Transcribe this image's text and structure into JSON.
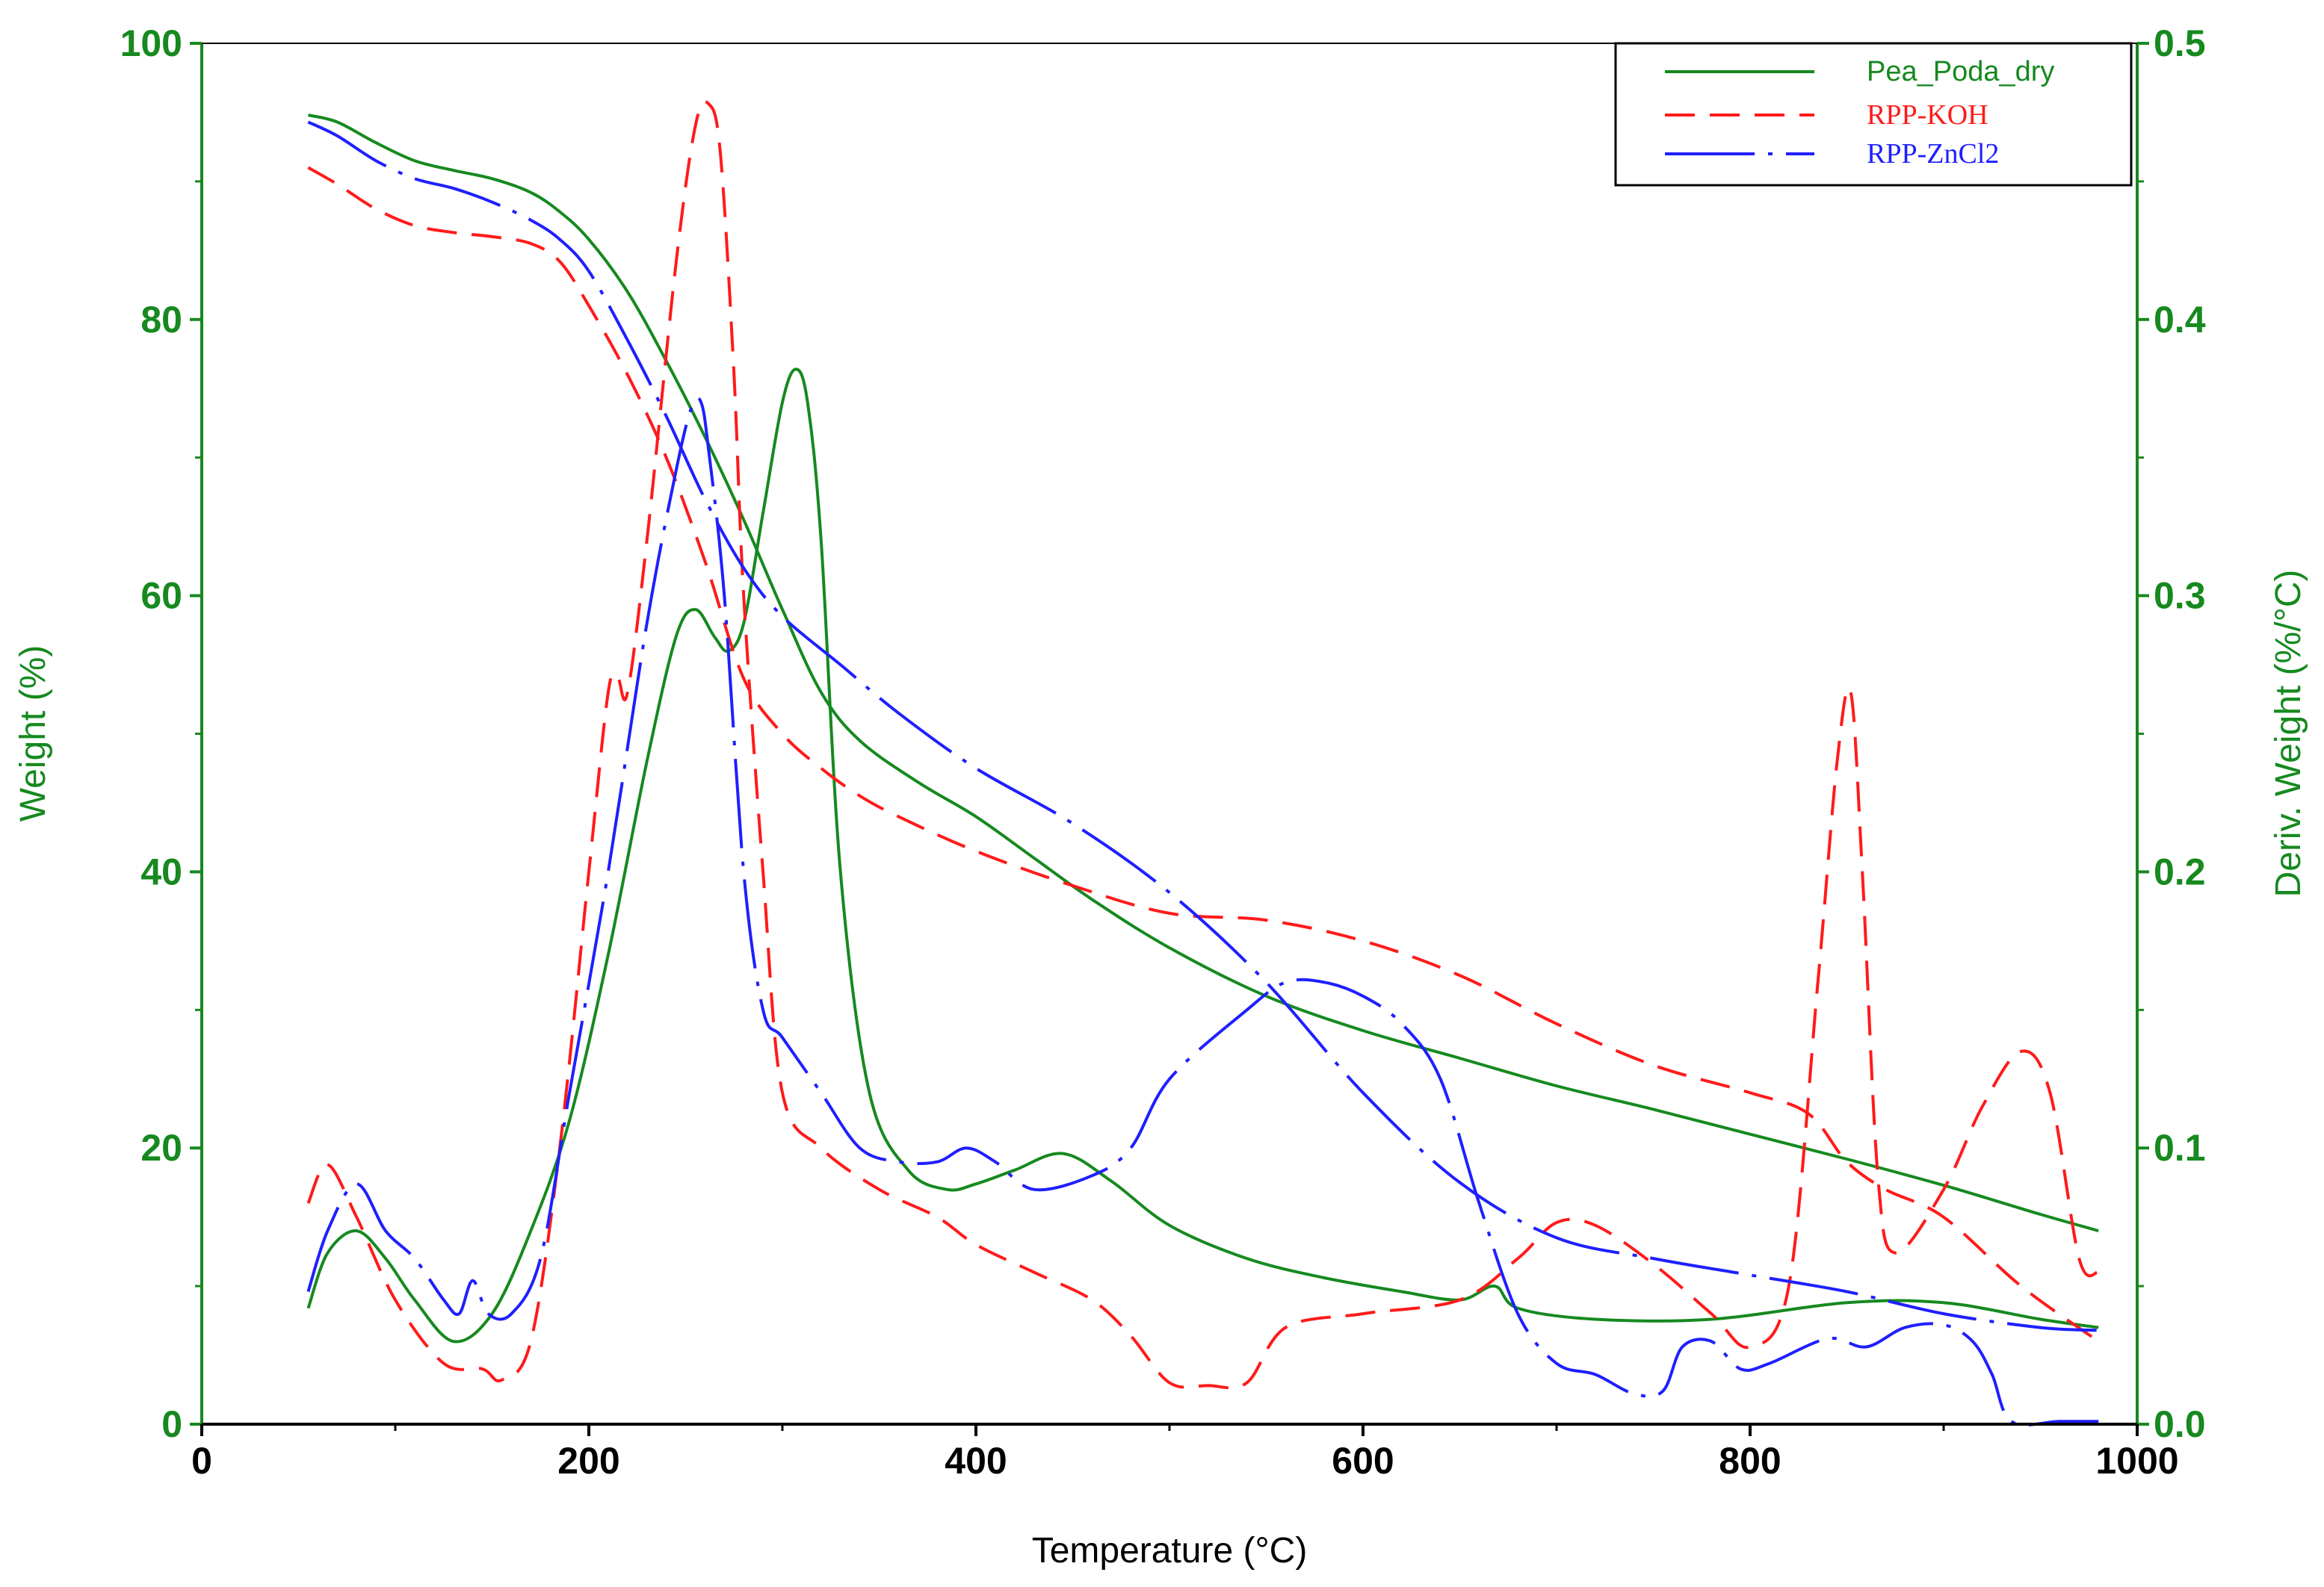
{
  "colors": {
    "green": "#16891f",
    "red": "#ff1a1a",
    "blue": "#1f1fff",
    "axis_left": "#16891f",
    "axis_right": "#16891f",
    "axis_bottom": "#000000"
  },
  "chart_data": {
    "type": "line",
    "title": "",
    "xlabel": "Temperature (°C)",
    "ylabel": "Weight (%)",
    "y2label": "Deriv. Weight (%/°C)",
    "xlim": [
      0,
      1000
    ],
    "ylim": [
      0,
      100
    ],
    "y2lim": [
      0,
      0.5
    ],
    "x_ticks": [
      "0",
      "200",
      "400",
      "600",
      "800",
      "1000"
    ],
    "y_ticks": [
      "0",
      "20",
      "40",
      "60",
      "80",
      "100"
    ],
    "y2_ticks": [
      "0.0",
      "0.1",
      "0.2",
      "0.3",
      "0.4",
      "0.5"
    ],
    "grid": false,
    "legend_position": "top-right",
    "series": [
      {
        "name": "Pea_Poda_dry",
        "role": "weight",
        "axis": "left",
        "color": "green",
        "dash": "solid",
        "x": [
          55,
          70,
          90,
          110,
          130,
          150,
          170,
          185,
          200,
          220,
          240,
          260,
          280,
          300,
          320,
          340,
          370,
          400,
          430,
          460,
          500,
          550,
          600,
          650,
          700,
          750,
          800,
          850,
          900,
          950,
          980
        ],
        "y": [
          94.8,
          94.3,
          92.8,
          91.5,
          90.8,
          90.2,
          89.2,
          87.8,
          85.8,
          82.0,
          77.0,
          71.5,
          65.5,
          59.0,
          53.0,
          49.5,
          46.5,
          44.0,
          41.0,
          38.0,
          34.5,
          31.0,
          28.5,
          26.5,
          24.5,
          22.8,
          21.0,
          19.2,
          17.3,
          15.2,
          14.0
        ]
      },
      {
        "name": "Pea_Poda_dry",
        "role": "derivative",
        "axis": "right",
        "color": "green",
        "dash": "solid",
        "x": [
          55,
          65,
          80,
          95,
          110,
          130,
          150,
          170,
          190,
          210,
          230,
          245,
          255,
          265,
          272,
          280,
          290,
          300,
          307,
          313,
          320,
          330,
          345,
          365,
          385,
          400,
          420,
          445,
          470,
          500,
          540,
          580,
          620,
          650,
          668,
          680,
          720,
          780,
          850,
          900,
          950,
          980
        ],
        "y": [
          0.042,
          0.062,
          0.07,
          0.06,
          0.045,
          0.03,
          0.04,
          0.07,
          0.11,
          0.17,
          0.24,
          0.285,
          0.295,
          0.285,
          0.28,
          0.29,
          0.33,
          0.37,
          0.382,
          0.37,
          0.32,
          0.2,
          0.12,
          0.092,
          0.085,
          0.087,
          0.092,
          0.098,
          0.088,
          0.072,
          0.06,
          0.053,
          0.048,
          0.045,
          0.05,
          0.042,
          0.038,
          0.038,
          0.044,
          0.044,
          0.038,
          0.035
        ]
      },
      {
        "name": "RPP-KOH",
        "role": "weight",
        "axis": "left",
        "color": "red",
        "dash": "dashed",
        "x": [
          55,
          70,
          90,
          110,
          130,
          150,
          170,
          185,
          200,
          220,
          240,
          260,
          280,
          300,
          320,
          340,
          360,
          400,
          450,
          500,
          550,
          600,
          650,
          700,
          750,
          800,
          830,
          850,
          870,
          900,
          940,
          980
        ],
        "y": [
          91.0,
          89.8,
          88.0,
          86.8,
          86.3,
          86.0,
          85.5,
          84.2,
          81.0,
          76.0,
          70.0,
          62.5,
          54.0,
          50.0,
          47.5,
          45.5,
          44.0,
          41.5,
          39.0,
          37.0,
          36.5,
          35.0,
          32.5,
          29.0,
          26.0,
          24.0,
          22.5,
          19.0,
          17.0,
          15.0,
          10.0,
          6.0
        ]
      },
      {
        "name": "RPP-KOH",
        "role": "derivative",
        "axis": "right",
        "color": "red",
        "dash": "dashed",
        "x": [
          55,
          65,
          80,
          100,
          125,
          145,
          155,
          170,
          185,
          200,
          210,
          215,
          220,
          230,
          245,
          255,
          262,
          268,
          275,
          280,
          290,
          300,
          320,
          350,
          380,
          400,
          430,
          460,
          480,
          500,
          520,
          540,
          560,
          600,
          650,
          680,
          700,
          720,
          750,
          780,
          800,
          820,
          835,
          845,
          852,
          858,
          866,
          875,
          900,
          920,
          940,
          955,
          970,
          980
        ],
        "y": [
          0.08,
          0.094,
          0.075,
          0.045,
          0.022,
          0.02,
          0.016,
          0.03,
          0.1,
          0.2,
          0.265,
          0.27,
          0.265,
          0.32,
          0.42,
          0.47,
          0.478,
          0.46,
          0.38,
          0.3,
          0.2,
          0.12,
          0.1,
          0.085,
          0.075,
          0.065,
          0.055,
          0.045,
          0.032,
          0.015,
          0.014,
          0.015,
          0.035,
          0.04,
          0.045,
          0.06,
          0.073,
          0.072,
          0.058,
          0.04,
          0.028,
          0.05,
          0.16,
          0.24,
          0.265,
          0.2,
          0.09,
          0.062,
          0.085,
          0.115,
          0.135,
          0.12,
          0.06,
          0.055
        ]
      },
      {
        "name": "RPP-ZnCl2",
        "role": "weight",
        "axis": "left",
        "color": "blue",
        "dash": "dashdot",
        "x": [
          55,
          70,
          90,
          110,
          130,
          150,
          170,
          185,
          200,
          220,
          240,
          260,
          280,
          300,
          330,
          360,
          400,
          450,
          500,
          550,
          600,
          650,
          700,
          750,
          800,
          850,
          900,
          950,
          980
        ],
        "y": [
          94.3,
          93.3,
          91.5,
          90.2,
          89.5,
          88.5,
          87.2,
          85.8,
          83.5,
          78.5,
          73.0,
          67.0,
          62.0,
          58.5,
          55.0,
          51.5,
          47.5,
          43.5,
          38.5,
          32.0,
          24.0,
          17.5,
          13.5,
          12.0,
          10.8,
          9.6,
          8.0,
          7.0,
          6.8
        ]
      },
      {
        "name": "RPP-ZnCl2",
        "role": "derivative",
        "axis": "right",
        "color": "blue",
        "dash": "dashdot",
        "x": [
          55,
          65,
          80,
          95,
          110,
          125,
          133,
          140,
          148,
          160,
          175,
          190,
          210,
          230,
          245,
          253,
          258,
          262,
          270,
          280,
          290,
          300,
          320,
          340,
          360,
          380,
          395,
          410,
          430,
          460,
          480,
          500,
          540,
          560,
          580,
          600,
          620,
          640,
          660,
          680,
          700,
          720,
          740,
          755,
          765,
          780,
          795,
          810,
          840,
          860,
          880,
          900,
          915,
          925,
          935,
          960,
          980
        ],
        "y": [
          0.048,
          0.07,
          0.087,
          0.07,
          0.06,
          0.045,
          0.04,
          0.052,
          0.04,
          0.04,
          0.06,
          0.12,
          0.2,
          0.29,
          0.345,
          0.368,
          0.37,
          0.352,
          0.3,
          0.2,
          0.15,
          0.14,
          0.12,
          0.1,
          0.095,
          0.095,
          0.1,
          0.095,
          0.085,
          0.09,
          0.1,
          0.125,
          0.15,
          0.16,
          0.16,
          0.155,
          0.145,
          0.125,
          0.08,
          0.04,
          0.022,
          0.018,
          0.011,
          0.012,
          0.028,
          0.03,
          0.02,
          0.022,
          0.031,
          0.028,
          0.035,
          0.036,
          0.03,
          0.018,
          0.001,
          0.001,
          0.001
        ]
      }
    ]
  }
}
